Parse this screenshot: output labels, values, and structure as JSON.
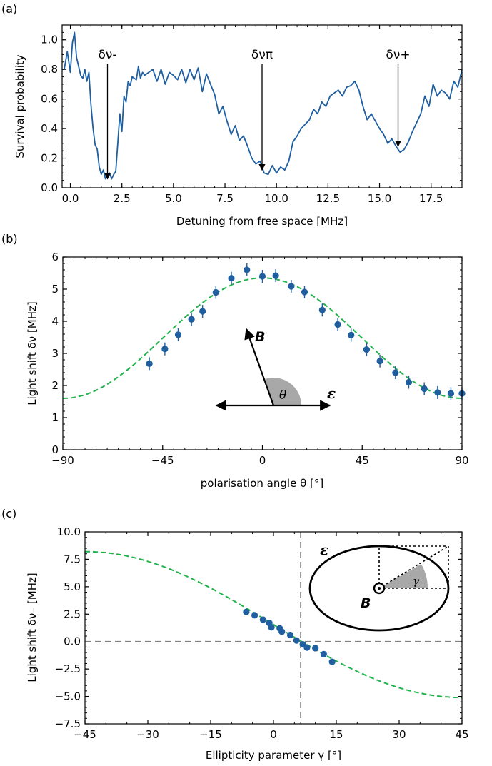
{
  "chart_data": [
    {
      "type": "line",
      "panel_label": "(a)",
      "xlabel": "Detuning from free space [MHz]",
      "ylabel": "Survival probability",
      "xlim": [
        -0.4,
        19.0
      ],
      "ylim": [
        0.0,
        1.1
      ],
      "xticks": [
        "0.0",
        "2.5",
        "5.0",
        "7.5",
        "10.0",
        "12.5",
        "15.0",
        "17.5"
      ],
      "yticks": [
        "0.0",
        "0.2",
        "0.4",
        "0.6",
        "0.8",
        "1.0"
      ],
      "color": "#1f5fa0",
      "series": [
        {
          "x": [
            -0.3,
            -0.15,
            0.0,
            0.1,
            0.2,
            0.3,
            0.4,
            0.5,
            0.6,
            0.7,
            0.8,
            0.9,
            1.0,
            1.1,
            1.2,
            1.3,
            1.4,
            1.5,
            1.6,
            1.7,
            1.8,
            1.9,
            2.0,
            2.1,
            2.2,
            2.3,
            2.4,
            2.5,
            2.6,
            2.7,
            2.8,
            2.9,
            3.0,
            3.1,
            3.2,
            3.3,
            3.4,
            3.5,
            3.6,
            3.8,
            4.0,
            4.2,
            4.4,
            4.6,
            4.8,
            5.0,
            5.2,
            5.4,
            5.6,
            5.8,
            6.0,
            6.2,
            6.4,
            6.6,
            6.8,
            7.0,
            7.2,
            7.4,
            7.6,
            7.8,
            8.0,
            8.2,
            8.4,
            8.6,
            8.8,
            9.0,
            9.2,
            9.4,
            9.6,
            9.8,
            10.0,
            10.2,
            10.4,
            10.6,
            10.8,
            11.0,
            11.2,
            11.4,
            11.6,
            11.8,
            12.0,
            12.2,
            12.4,
            12.6,
            12.8,
            13.0,
            13.2,
            13.4,
            13.6,
            13.8,
            14.0,
            14.2,
            14.4,
            14.6,
            14.8,
            15.0,
            15.2,
            15.4,
            15.6,
            15.8,
            16.0,
            16.2,
            16.4,
            16.6,
            16.8,
            17.0,
            17.2,
            17.4,
            17.6,
            17.8,
            18.0,
            18.2,
            18.4,
            18.6,
            18.8,
            19.0
          ],
          "y": [
            0.8,
            0.92,
            0.78,
            0.98,
            1.05,
            0.88,
            0.82,
            0.76,
            0.74,
            0.8,
            0.72,
            0.78,
            0.56,
            0.4,
            0.29,
            0.26,
            0.14,
            0.09,
            0.12,
            0.06,
            0.08,
            0.1,
            0.06,
            0.09,
            0.11,
            0.3,
            0.5,
            0.38,
            0.62,
            0.58,
            0.72,
            0.69,
            0.75,
            0.74,
            0.73,
            0.82,
            0.74,
            0.78,
            0.76,
            0.78,
            0.8,
            0.72,
            0.8,
            0.7,
            0.78,
            0.76,
            0.73,
            0.8,
            0.71,
            0.8,
            0.73,
            0.81,
            0.65,
            0.77,
            0.7,
            0.63,
            0.5,
            0.55,
            0.45,
            0.36,
            0.42,
            0.32,
            0.35,
            0.28,
            0.2,
            0.16,
            0.18,
            0.1,
            0.09,
            0.15,
            0.1,
            0.14,
            0.12,
            0.18,
            0.31,
            0.35,
            0.4,
            0.43,
            0.46,
            0.53,
            0.5,
            0.58,
            0.55,
            0.62,
            0.64,
            0.66,
            0.62,
            0.68,
            0.69,
            0.72,
            0.66,
            0.55,
            0.46,
            0.5,
            0.45,
            0.4,
            0.36,
            0.3,
            0.33,
            0.28,
            0.24,
            0.26,
            0.31,
            0.38,
            0.44,
            0.5,
            0.62,
            0.55,
            0.7,
            0.62,
            0.66,
            0.64,
            0.6,
            0.72,
            0.68,
            0.8
          ]
        }
      ],
      "annotations": [
        {
          "label": "δν-",
          "x": 1.8,
          "y": 0.05
        },
        {
          "label": "δνπ",
          "x": 9.3,
          "y": 0.11
        },
        {
          "label": "δν+",
          "x": 15.9,
          "y": 0.27
        }
      ]
    },
    {
      "type": "scatter",
      "panel_label": "(b)",
      "xlabel": "polarisation angle θ [°]",
      "ylabel": "Light shift δν [MHz]",
      "xlim": [
        -90,
        90
      ],
      "ylim": [
        0,
        6
      ],
      "xticks": [
        "−90",
        "−45",
        "0",
        "45",
        "90"
      ],
      "yticks": [
        "0",
        "1",
        "2",
        "3",
        "4",
        "5",
        "6"
      ],
      "point_color": "#1f5fa0",
      "fit_color": "#22b24c",
      "series": [
        {
          "x": [
            -51,
            -44,
            -38,
            -32,
            -27,
            -21,
            -14,
            -7,
            0,
            6,
            13,
            19,
            27,
            34,
            40,
            47,
            53,
            60,
            66,
            73,
            79,
            85,
            90
          ],
          "y": [
            2.68,
            3.14,
            3.58,
            4.06,
            4.31,
            4.9,
            5.34,
            5.6,
            5.4,
            5.42,
            5.09,
            4.91,
            4.35,
            3.9,
            3.57,
            3.12,
            2.76,
            2.4,
            2.1,
            1.9,
            1.78,
            1.75,
            1.75
          ]
        }
      ],
      "fit": {
        "x_min": -90,
        "x_max": 90,
        "y_min": 1.6,
        "y_max": 5.35
      },
      "inset_labels": {
        "vector_B": "B",
        "vector_epsilon": "ε",
        "angle": "θ"
      }
    },
    {
      "type": "scatter",
      "panel_label": "(c)",
      "xlabel": "Ellipticity parameter γ [°]",
      "ylabel": "Light shift δν₋ [MHz]",
      "xlim": [
        -45,
        45
      ],
      "ylim": [
        -7.5,
        10.0
      ],
      "xticks": [
        "−45",
        "−30",
        "−15",
        "0",
        "15",
        "30",
        "45"
      ],
      "yticks": [
        "−7.5",
        "−5.0",
        "−2.5",
        "0.0",
        "2.5",
        "5.0",
        "7.5",
        "10.0"
      ],
      "point_color": "#1f5fa0",
      "fit_color": "#22b24c",
      "series": [
        {
          "x": [
            -6.5,
            -4.5,
            -2.5,
            -1.0,
            -0.5,
            1.5,
            2.0,
            4.0,
            5.5,
            7.0,
            8.0,
            10.0,
            12.0,
            14.0
          ],
          "y": [
            2.7,
            2.4,
            2.0,
            1.7,
            1.3,
            1.2,
            0.9,
            0.6,
            0.1,
            -0.25,
            -0.55,
            -0.6,
            -1.15,
            -1.85
          ]
        }
      ],
      "fit": {
        "x_min": -45,
        "x_max": 45,
        "y_start": 8.2,
        "y_end": -5.1
      },
      "vertical_line_x": 6.5,
      "horizontal_line_y": 0.0,
      "inset_labels": {
        "vector_B": "B",
        "vector_epsilon": "ε",
        "angle": "γ"
      }
    }
  ]
}
